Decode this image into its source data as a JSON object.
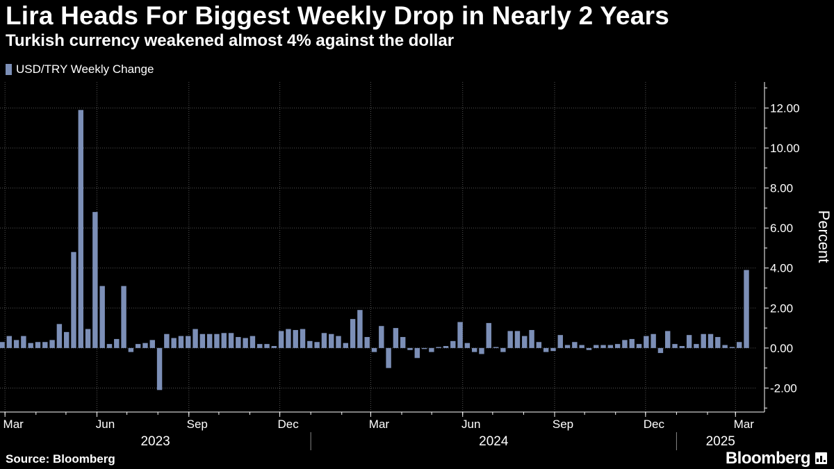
{
  "title": "Lira Heads For Biggest Weekly Drop in Nearly 2 Years",
  "subtitle": "Turkish currency weakened almost 4% against the dollar",
  "source": "Source: Bloomberg",
  "brand": "Bloomberg",
  "colors": {
    "bar": "#7c8fb7",
    "background": "#000000",
    "grid": "#555555"
  },
  "chart_data": {
    "type": "bar",
    "series": [
      {
        "name": "USD/TRY Weekly Change",
        "values": [
          0.3,
          0.6,
          0.4,
          0.6,
          0.25,
          0.3,
          0.3,
          0.4,
          1.2,
          0.8,
          4.8,
          11.9,
          0.95,
          6.8,
          3.1,
          0.2,
          0.45,
          3.1,
          -0.2,
          0.2,
          0.25,
          0.4,
          -2.1,
          0.7,
          0.5,
          0.6,
          0.6,
          0.95,
          0.7,
          0.7,
          0.7,
          0.75,
          0.75,
          0.55,
          0.5,
          0.6,
          0.2,
          0.2,
          0.1,
          0.85,
          0.95,
          0.9,
          0.95,
          0.35,
          0.3,
          0.75,
          0.7,
          0.6,
          0.25,
          1.45,
          1.9,
          0.55,
          -0.2,
          1.1,
          -1.0,
          1.0,
          0.55,
          -0.1,
          -0.5,
          -0.05,
          -0.2,
          0.05,
          0.1,
          0.35,
          1.3,
          0.25,
          -0.2,
          -0.3,
          1.25,
          0.05,
          -0.2,
          0.85,
          0.85,
          0.6,
          0.9,
          0.3,
          -0.2,
          -0.15,
          0.65,
          0.15,
          0.3,
          0.15,
          -0.1,
          0.15,
          0.15,
          0.15,
          0.2,
          0.4,
          0.45,
          0.2,
          0.6,
          0.7,
          -0.25,
          0.85,
          0.2,
          0.1,
          0.65,
          0.2,
          0.7,
          0.7,
          0.55,
          0.15,
          0.05,
          0.3,
          3.9
        ]
      }
    ],
    "x_range": [
      "2023-02-24",
      "2025-03-21"
    ],
    "xtick_labels": [
      "Mar",
      "Jun",
      "Sep",
      "Dec",
      "Mar",
      "Jun",
      "Sep",
      "Dec",
      "Mar"
    ],
    "year_labels": [
      "2023",
      "2024",
      "2025"
    ],
    "ylabel": "Percent",
    "yticks": [
      "12.00",
      "10.00",
      "8.00",
      "6.00",
      "4.00",
      "2.00",
      "0.00",
      "-2.00"
    ],
    "ylim": [
      -3.2,
      13.3
    ],
    "grid": true,
    "legend_position": "top-left"
  }
}
